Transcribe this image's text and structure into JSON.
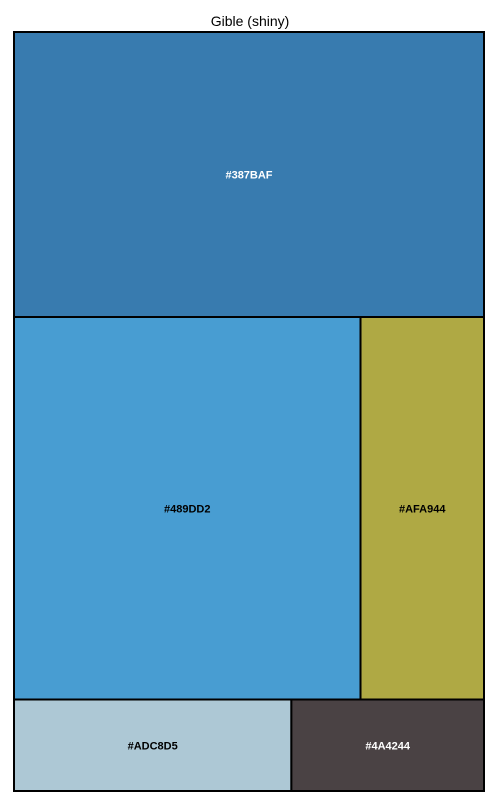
{
  "chart_data": {
    "type": "treemap",
    "title": "Gible (shiny)",
    "tiles": [
      {
        "label": "#387BAF",
        "color": "#387BAF",
        "value": 38.0,
        "text_color": "#ffffff"
      },
      {
        "label": "#489DD2",
        "color": "#489DD2",
        "value": 37.6,
        "text_color": "#000000"
      },
      {
        "label": "#AFA944",
        "color": "#AFA944",
        "value": 13.4,
        "text_color": "#000000"
      },
      {
        "label": "#ADC8D5",
        "color": "#ADC8D5",
        "value": 7.2,
        "text_color": "#000000"
      },
      {
        "label": "#4A4244",
        "color": "#4A4244",
        "value": 5.0,
        "text_color": "#ffffff"
      }
    ]
  }
}
